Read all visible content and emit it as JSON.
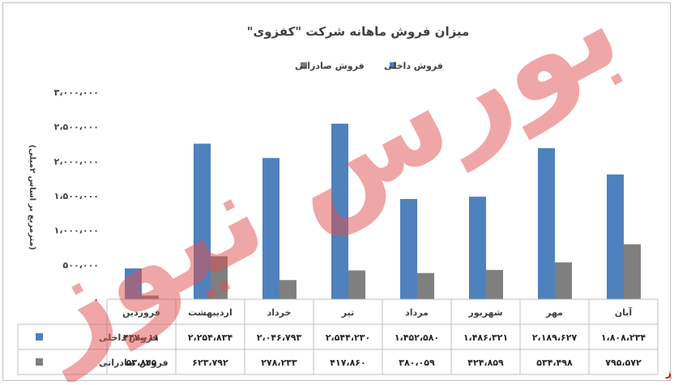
{
  "chart_data": {
    "type": "bar",
    "title": "میزان فروش ماهانه شرکت \"کفزوی\"",
    "ylabel": "(مترمربع بر اساس ۲میلی)",
    "ylim": [
      0,
      3000000
    ],
    "y_ticks": [
      0,
      500000,
      1000000,
      1500000,
      2000000,
      2500000,
      3000000
    ],
    "y_tick_labels": [
      "۰",
      "۵۰۰،۰۰۰",
      "۱،۰۰۰،۰۰۰",
      "۱،۵۰۰،۰۰۰",
      "۲،۰۰۰،۰۰۰",
      "۲،۵۰۰،۰۰۰",
      "۳،۰۰۰،۰۰۰"
    ],
    "categories": [
      "آبان",
      "مهر",
      "شهریور",
      "مرداد",
      "تیر",
      "خرداد",
      "اردیبهشت",
      "فروردین"
    ],
    "series": [
      {
        "name": "فروش داخلی",
        "color": "#4f81bd",
        "values": [
          1808234,
          2189627,
          1486321,
          1452580,
          2544230,
          2046793,
          2254834,
          447011
        ],
        "labels": [
          "۱،۸۰۸،۲۳۴",
          "۲،۱۸۹،۶۲۷",
          "۱،۴۸۶،۳۲۱",
          "۱،۴۵۲،۵۸۰",
          "۲،۵۴۴،۲۳۰",
          "۲،۰۴۶،۷۹۳",
          "۲،۲۵۴،۸۳۴",
          "۴۴۷،۰۱۱"
        ]
      },
      {
        "name": "فروش صادراتی",
        "color": "#7f7f7f",
        "values": [
          795572,
          534498,
          424859,
          380059,
          417860,
          278233,
          623792,
          53845
        ],
        "labels": [
          "۷۹۵،۵۷۲",
          "۵۳۴،۴۹۸",
          "۴۲۴،۸۵۹",
          "۳۸۰،۰۵۹",
          "۴۱۷،۸۶۰",
          "۲۷۸،۲۳۳",
          "۶۲۳،۷۹۲",
          "۵۳،۸۴۵"
        ]
      }
    ],
    "legend": "top",
    "grid": false,
    "data_table": true
  },
  "watermark": {
    "text": "بورس نیوز",
    "color": "#e05050"
  },
  "brand": {
    "text": "بورس نیوز",
    "color": "#c00000"
  }
}
